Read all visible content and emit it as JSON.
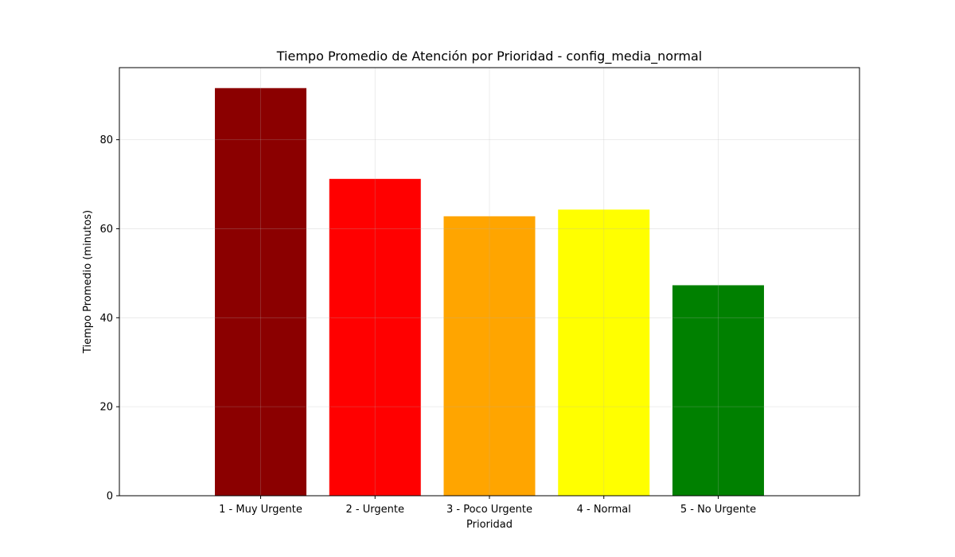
{
  "chart_data": {
    "type": "bar",
    "title": "Tiempo Promedio de Atención por Prioridad - config_media_normal",
    "xlabel": "Prioridad",
    "ylabel": "Tiempo Promedio (minutos)",
    "categories": [
      "1 - Muy Urgente",
      "2 - Urgente",
      "3 - Poco Urgente",
      "4 - Normal",
      "5 - No Urgente"
    ],
    "values": [
      91.6,
      71.2,
      62.8,
      64.3,
      47.3
    ],
    "colors": [
      "#8b0000",
      "#ff0000",
      "#ffa500",
      "#ffff00",
      "#008000"
    ],
    "ylim": [
      0,
      96.2
    ],
    "yticks": [
      0,
      20,
      40,
      60,
      80
    ],
    "grid": true,
    "legend": "none"
  }
}
